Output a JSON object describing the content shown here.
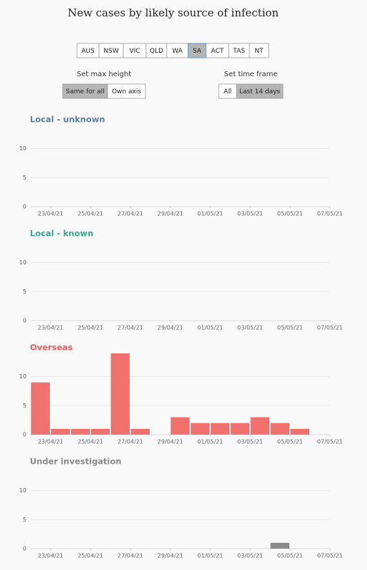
{
  "title": "New cases by likely source of infection",
  "controls": {
    "states": {
      "options": [
        "AUS",
        "NSW",
        "VIC",
        "QLD",
        "WA",
        "SA",
        "ACT",
        "TAS",
        "NT"
      ],
      "selected": 5
    },
    "max_height": {
      "label": "Set max height",
      "options": [
        "Same for all",
        "Own axis"
      ],
      "selected": 0
    },
    "time_frame": {
      "label": "Set time frame",
      "options": [
        "All",
        "Last 14 days"
      ],
      "selected": 1
    }
  },
  "chart_data": [
    {
      "type": "bar",
      "title": "Local - unknown",
      "title_color": "#5a7fa8",
      "color": "#5a7fa8",
      "x": [
        "22/04/21",
        "23/04/21",
        "24/04/21",
        "25/04/21",
        "26/04/21",
        "27/04/21",
        "28/04/21",
        "29/04/21",
        "30/04/21",
        "01/05/21",
        "02/05/21",
        "03/05/21",
        "04/05/21",
        "05/05/21",
        "06/05/21"
      ],
      "values": [
        0,
        0,
        0,
        0,
        0,
        0,
        0,
        0,
        0,
        0,
        0,
        0,
        0,
        0,
        0
      ],
      "xlim": [
        "22/04/21",
        "07/05/21"
      ],
      "xticks": [
        "23/04/21",
        "25/04/21",
        "27/04/21",
        "29/04/21",
        "01/05/21",
        "03/05/21",
        "05/05/21",
        "07/05/21"
      ],
      "ylim": [
        0,
        14
      ],
      "yticks": [
        0,
        5,
        10
      ],
      "grid": true
    },
    {
      "type": "bar",
      "title": "Local - known",
      "title_color": "#3aa58c",
      "color": "#3aa58c",
      "x": [
        "22/04/21",
        "23/04/21",
        "24/04/21",
        "25/04/21",
        "26/04/21",
        "27/04/21",
        "28/04/21",
        "29/04/21",
        "30/04/21",
        "01/05/21",
        "02/05/21",
        "03/05/21",
        "04/05/21",
        "05/05/21",
        "06/05/21"
      ],
      "values": [
        0,
        0,
        0,
        0,
        0,
        0,
        0,
        0,
        0,
        0,
        0,
        0,
        0,
        0,
        0
      ],
      "xlim": [
        "22/04/21",
        "07/05/21"
      ],
      "xticks": [
        "23/04/21",
        "25/04/21",
        "27/04/21",
        "29/04/21",
        "01/05/21",
        "03/05/21",
        "05/05/21",
        "07/05/21"
      ],
      "ylim": [
        0,
        14
      ],
      "yticks": [
        0,
        5,
        10
      ],
      "grid": true
    },
    {
      "type": "bar",
      "title": "Overseas",
      "title_color": "#e8625f",
      "color": "#f0716d",
      "x": [
        "22/04/21",
        "23/04/21",
        "24/04/21",
        "25/04/21",
        "26/04/21",
        "27/04/21",
        "28/04/21",
        "29/04/21",
        "30/04/21",
        "01/05/21",
        "02/05/21",
        "03/05/21",
        "04/05/21",
        "05/05/21",
        "06/05/21"
      ],
      "values": [
        9,
        1,
        1,
        1,
        14,
        1,
        0,
        3,
        2,
        2,
        2,
        3,
        2,
        1,
        0
      ],
      "xlim": [
        "22/04/21",
        "07/05/21"
      ],
      "xticks": [
        "23/04/21",
        "25/04/21",
        "27/04/21",
        "29/04/21",
        "01/05/21",
        "03/05/21",
        "05/05/21",
        "07/05/21"
      ],
      "ylim": [
        0,
        14
      ],
      "yticks": [
        0,
        5,
        10
      ],
      "grid": true
    },
    {
      "type": "bar",
      "title": "Under investigation",
      "title_color": "#8a8a8a",
      "color": "#8a8a8a",
      "x": [
        "22/04/21",
        "23/04/21",
        "24/04/21",
        "25/04/21",
        "26/04/21",
        "27/04/21",
        "28/04/21",
        "29/04/21",
        "30/04/21",
        "01/05/21",
        "02/05/21",
        "03/05/21",
        "04/05/21",
        "05/05/21",
        "06/05/21"
      ],
      "values": [
        0,
        0,
        0,
        0,
        0,
        0,
        0,
        0,
        0,
        0,
        0,
        0,
        1,
        0,
        0
      ],
      "xlim": [
        "22/04/21",
        "07/05/21"
      ],
      "xticks": [
        "23/04/21",
        "25/04/21",
        "27/04/21",
        "29/04/21",
        "01/05/21",
        "03/05/21",
        "05/05/21",
        "07/05/21"
      ],
      "ylim": [
        0,
        14
      ],
      "yticks": [
        0,
        5,
        10
      ],
      "grid": true
    }
  ]
}
